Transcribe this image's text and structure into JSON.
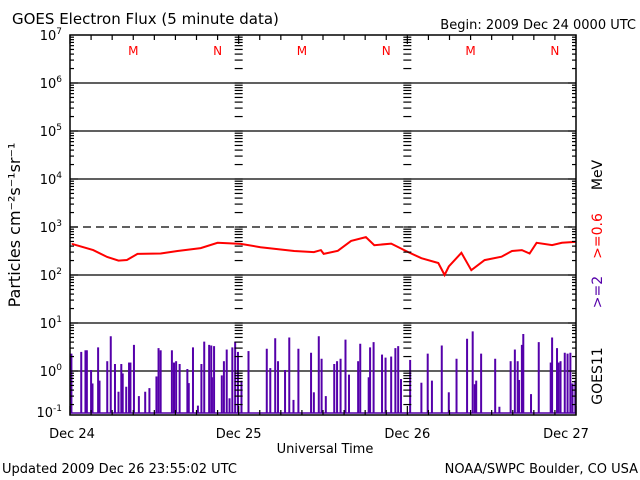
{
  "header": {
    "title": "GOES Electron Flux (5 minute data)",
    "begin": "Begin: 2009 Dec 24 0000 UTC"
  },
  "footer": {
    "updated": "Updated 2009 Dec 26 23:55:02 UTC",
    "source": "NOAA/SWPC Boulder, CO USA"
  },
  "right_labels": {
    "unit": "MeV",
    "series_red": ">=0.6",
    "series_purple": ">=2",
    "satellite": "GOES11"
  },
  "markers": {
    "midnight": "M",
    "noon": "N"
  },
  "colors": {
    "red_series": "#ff0000",
    "purple_series": "#5500aa",
    "marker": "#ff0000"
  },
  "chart_data": {
    "type": "line",
    "title": "GOES Electron Flux (5 minute data)",
    "xlabel": "Universal Time",
    "ylabel": "Particles cm⁻²s⁻¹sr⁻¹",
    "y_scale": "log",
    "ylim": [
      0.12,
      10000000
    ],
    "xlim_hours": [
      0,
      72
    ],
    "x_ticks": [
      "Dec 24",
      "Dec 25",
      "Dec 26",
      "Dec 27"
    ],
    "y_ticks": [
      {
        "base": "10",
        "exp": "7"
      },
      {
        "base": "10",
        "exp": "6"
      },
      {
        "base": "10",
        "exp": "5"
      },
      {
        "base": "10",
        "exp": "4"
      },
      {
        "base": "10",
        "exp": "3"
      },
      {
        "base": "10",
        "exp": "2"
      },
      {
        "base": "10",
        "exp": "1"
      },
      {
        "base": "10",
        "exp": "0"
      },
      {
        "base": "10",
        "exp": "-1"
      }
    ],
    "threshold_line": 1000,
    "series": [
      {
        "name": ">=0.6 MeV",
        "style": "line",
        "color": "#ff0000",
        "points": [
          [
            0.3,
            445
          ],
          [
            3.3,
            330
          ],
          [
            5.3,
            237
          ],
          [
            6.9,
            200
          ],
          [
            8.1,
            205
          ],
          [
            9.6,
            275
          ],
          [
            12.9,
            280
          ],
          [
            15.3,
            316
          ],
          [
            18.6,
            363
          ],
          [
            21,
            468
          ],
          [
            24.3,
            445
          ],
          [
            27.1,
            380
          ],
          [
            31.9,
            316
          ],
          [
            34.7,
            300
          ],
          [
            35.7,
            330
          ],
          [
            36.1,
            275
          ],
          [
            38.1,
            320
          ],
          [
            40,
            513
          ],
          [
            42.1,
            617
          ],
          [
            43.3,
            417
          ],
          [
            45.7,
            450
          ],
          [
            48.1,
            302
          ],
          [
            50,
            224
          ],
          [
            52.4,
            178
          ],
          [
            53.3,
            100
          ],
          [
            53.9,
            150
          ],
          [
            55.7,
            290
          ],
          [
            57.1,
            126
          ],
          [
            59,
            204
          ],
          [
            61.4,
            240
          ],
          [
            62.9,
            316
          ],
          [
            64.3,
            330
          ],
          [
            65.4,
            280
          ],
          [
            66.4,
            468
          ],
          [
            68.6,
            420
          ],
          [
            70,
            468
          ],
          [
            71.9,
            490
          ]
        ]
      },
      {
        "name": ">=2 MeV",
        "style": "spikes",
        "color": "#5500aa",
        "baseline": 0.12,
        "points": [
          [
            0.2,
            2.3
          ],
          [
            1.6,
            2.5
          ],
          [
            2.2,
            2.7
          ],
          [
            2.4,
            2.7
          ],
          [
            3.0,
            1.05
          ],
          [
            3.2,
            0.55
          ],
          [
            4.0,
            3.1
          ],
          [
            4.2,
            0.63
          ],
          [
            5.3,
            1.6
          ],
          [
            5.8,
            5.3
          ],
          [
            6.4,
            1.4
          ],
          [
            6.9,
            0.37
          ],
          [
            7.3,
            1.4
          ],
          [
            7.5,
            0.89
          ],
          [
            8.0,
            0.47
          ],
          [
            8.4,
            1.5
          ],
          [
            8.6,
            1.5
          ],
          [
            9.1,
            3.5
          ],
          [
            9.8,
            0.3
          ],
          [
            10.7,
            0.37
          ],
          [
            11.3,
            0.44
          ],
          [
            12.3,
            0.77
          ],
          [
            12.6,
            3.0
          ],
          [
            12.9,
            2.7
          ],
          [
            14.5,
            2.7
          ],
          [
            14.8,
            1.5
          ],
          [
            15.1,
            1.6
          ],
          [
            15.6,
            1.4
          ],
          [
            16.7,
            1.1
          ],
          [
            16.9,
            0.56
          ],
          [
            17.5,
            3.1
          ],
          [
            18.2,
            0.19
          ],
          [
            18.7,
            1.4
          ],
          [
            19.1,
            4.1
          ],
          [
            19.8,
            3.5
          ],
          [
            20.1,
            3.4
          ],
          [
            20.2,
            0.74
          ],
          [
            20.5,
            3.3
          ],
          [
            21.6,
            0.81
          ],
          [
            21.9,
            1.6
          ],
          [
            22.3,
            2.8
          ],
          [
            22.7,
            0.27
          ],
          [
            23.1,
            3.1
          ],
          [
            23.5,
            4.1
          ],
          [
            23.9,
            2.5
          ],
          [
            24.4,
            0.63
          ],
          [
            25.4,
            2.6
          ],
          [
            28.0,
            2.9
          ],
          [
            28.5,
            1.15
          ],
          [
            29.2,
            4.8
          ],
          [
            29.6,
            1.6
          ],
          [
            30.6,
            1.05
          ],
          [
            31.2,
            5.0
          ],
          [
            31.8,
            0.25
          ],
          [
            32.5,
            2.9
          ],
          [
            34.3,
            2.4
          ],
          [
            34.7,
            0.36
          ],
          [
            35.4,
            5.3
          ],
          [
            35.8,
            1.8
          ],
          [
            36.4,
            0.3
          ],
          [
            37.6,
            1.4
          ],
          [
            38.0,
            1.6
          ],
          [
            38.5,
            1.8
          ],
          [
            39.2,
            4.5
          ],
          [
            39.7,
            0.84
          ],
          [
            41.0,
            1.6
          ],
          [
            41.3,
            3.7
          ],
          [
            42.5,
            0.74
          ],
          [
            42.7,
            3.1
          ],
          [
            43.2,
            4.0
          ],
          [
            44.4,
            2.2
          ],
          [
            44.9,
            1.9
          ],
          [
            45.7,
            2.0
          ],
          [
            46.3,
            3.0
          ],
          [
            46.7,
            3.3
          ],
          [
            47.1,
            0.68
          ],
          [
            48.4,
            1.7
          ],
          [
            50.0,
            0.57
          ],
          [
            50.9,
            2.3
          ],
          [
            51.5,
            0.63
          ],
          [
            52.9,
            3.4
          ],
          [
            53.9,
            0.36
          ],
          [
            55.0,
            1.8
          ],
          [
            56.5,
            4.7
          ],
          [
            57.3,
            6.7
          ],
          [
            57.6,
            0.53
          ],
          [
            57.8,
            0.63
          ],
          [
            58.5,
            2.3
          ],
          [
            60.5,
            1.8
          ],
          [
            61.1,
            0.18
          ],
          [
            62.7,
            1.6
          ],
          [
            63.3,
            2.8
          ],
          [
            63.7,
            1.6
          ],
          [
            63.9,
            0.65
          ],
          [
            64.3,
            3.5
          ],
          [
            64.5,
            5.9
          ],
          [
            65.6,
            0.33
          ],
          [
            66.7,
            4.0
          ],
          [
            68.4,
            1.5
          ],
          [
            68.6,
            5.0
          ],
          [
            69.3,
            3.0
          ],
          [
            69.5,
            1.5
          ],
          [
            69.8,
            1.6
          ],
          [
            70.4,
            2.4
          ],
          [
            70.8,
            2.3
          ],
          [
            71.2,
            2.4
          ],
          [
            71.5,
            0.55
          ],
          [
            71.9,
            0.63
          ]
        ]
      }
    ],
    "grid": true,
    "legend": "right-vertical"
  }
}
